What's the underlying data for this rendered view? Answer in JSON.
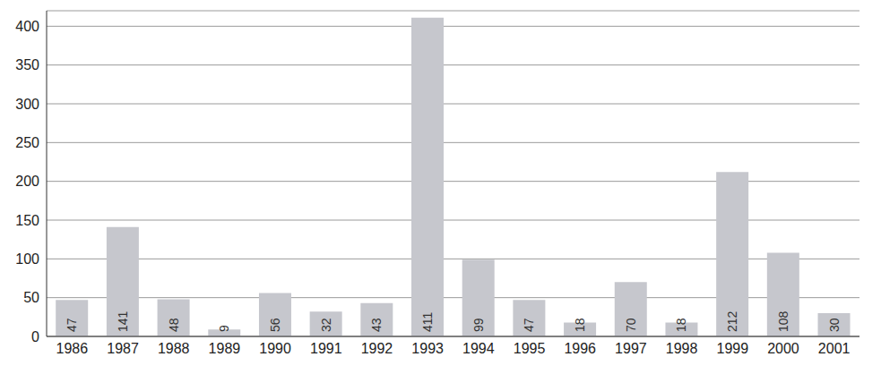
{
  "chart_data": {
    "type": "bar",
    "categories": [
      "1986",
      "1987",
      "1988",
      "1989",
      "1990",
      "1991",
      "1992",
      "1993",
      "1994",
      "1995",
      "1996",
      "1997",
      "1998",
      "1999",
      "2000",
      "2001"
    ],
    "values": [
      47,
      141,
      48,
      9,
      56,
      32,
      43,
      411,
      99,
      47,
      18,
      70,
      18,
      212,
      108,
      30
    ],
    "color": "#c6c7cd",
    "ylim": [
      0,
      420
    ],
    "yticks": [
      0,
      50,
      100,
      150,
      200,
      250,
      300,
      350,
      400
    ],
    "grid": true,
    "data_labels": true
  }
}
